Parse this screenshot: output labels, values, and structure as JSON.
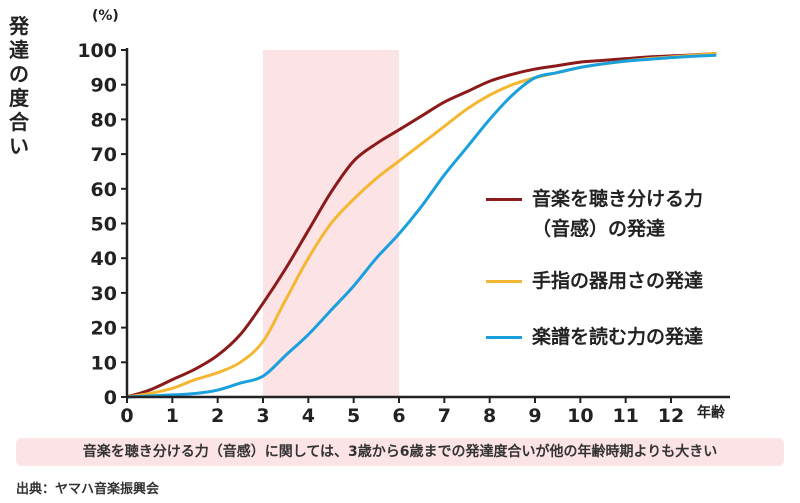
{
  "chart_data": {
    "type": "line",
    "ylabel_chars": [
      "発",
      "達",
      "の",
      "度",
      "合",
      "い"
    ],
    "y_unit": "(%)",
    "x_unit": "年齢",
    "xlim": [
      0,
      13
    ],
    "ylim": [
      0,
      100
    ],
    "x_ticks": [
      "0",
      "1",
      "2",
      "3",
      "4",
      "5",
      "6",
      "7",
      "8",
      "9",
      "10",
      "11",
      "12"
    ],
    "y_ticks": [
      "0",
      "10",
      "20",
      "30",
      "40",
      "50",
      "60",
      "70",
      "80",
      "90",
      "100"
    ],
    "highlight_range": [
      3,
      6
    ],
    "series": [
      {
        "name_lines": [
          "音楽を聴き分ける力",
          "（音感）の発達"
        ],
        "color": "#8b1a1a",
        "x": [
          0,
          0.5,
          1,
          1.5,
          2,
          2.5,
          3,
          3.5,
          4,
          4.5,
          5,
          5.5,
          6,
          6.5,
          7,
          7.5,
          8,
          8.5,
          9,
          9.5,
          10,
          10.5,
          11,
          11.5,
          12,
          12.5,
          13
        ],
        "y": [
          0,
          2,
          5,
          8,
          12,
          18,
          27,
          37,
          48,
          59,
          68,
          73,
          77,
          81,
          85,
          88,
          91,
          93,
          94.5,
          95.5,
          96.5,
          97,
          97.5,
          98,
          98.3,
          98.6,
          99
        ]
      },
      {
        "name_lines": [
          "手指の器用さの発達"
        ],
        "color": "#f5b731",
        "x": [
          0,
          0.5,
          1,
          1.5,
          2,
          2.5,
          3,
          3.5,
          4,
          4.5,
          5,
          5.5,
          6,
          6.5,
          7,
          7.5,
          8,
          8.5,
          9,
          9.5,
          10,
          10.5,
          11,
          11.5,
          12,
          12.5,
          13
        ],
        "y": [
          0,
          1,
          2.5,
          5,
          7,
          10,
          16,
          28,
          40,
          50,
          57,
          63,
          68,
          73,
          78,
          83,
          87,
          90,
          92,
          93.5,
          95,
          96,
          96.8,
          97.5,
          98,
          98.5,
          99
        ]
      },
      {
        "name_lines": [
          "楽譜を読む力の発達"
        ],
        "color": "#1aa0dc",
        "x": [
          0,
          0.5,
          1,
          1.5,
          2,
          2.5,
          3,
          3.5,
          4,
          4.5,
          5,
          5.5,
          6,
          6.5,
          7,
          7.5,
          8,
          8.5,
          9,
          9.5,
          10,
          10.5,
          11,
          11.5,
          12,
          12.5,
          13
        ],
        "y": [
          0,
          0.3,
          0.6,
          1,
          2,
          4,
          6,
          12,
          18,
          25,
          32,
          40,
          47,
          55,
          64,
          72,
          80,
          87,
          92,
          93.5,
          95,
          96,
          96.8,
          97.3,
          97.8,
          98.2,
          98.5
        ]
      }
    ]
  },
  "note": "音楽を聴き分ける力（音感）に関しては、3歳から6歳までの発達度合いが他の年齢時期よりも大きい",
  "source": "出典：ヤマハ音楽振興会"
}
